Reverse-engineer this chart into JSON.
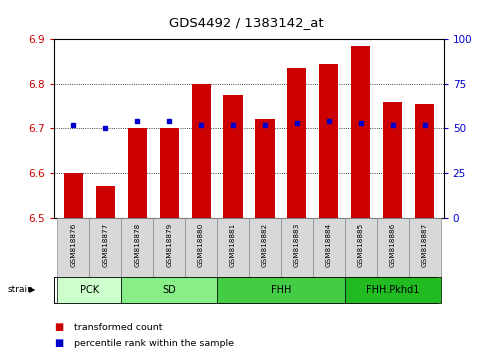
{
  "title": "GDS4492 / 1383142_at",
  "samples": [
    "GSM818876",
    "GSM818877",
    "GSM818878",
    "GSM818879",
    "GSM818880",
    "GSM818881",
    "GSM818882",
    "GSM818883",
    "GSM818884",
    "GSM818885",
    "GSM818886",
    "GSM818887"
  ],
  "transformed_count": [
    6.6,
    6.57,
    6.7,
    6.7,
    6.8,
    6.775,
    6.72,
    6.835,
    6.845,
    6.885,
    6.76,
    6.755
  ],
  "percentile_rank": [
    52,
    50,
    54,
    54,
    52,
    52,
    52,
    53,
    54,
    53,
    52,
    52
  ],
  "groups": [
    {
      "label": "PCK",
      "start": 0,
      "end": 1,
      "color": "#ccffcc"
    },
    {
      "label": "SD",
      "start": 2,
      "end": 4,
      "color": "#88ee88"
    },
    {
      "label": "FHH",
      "start": 5,
      "end": 8,
      "color": "#44dd44"
    },
    {
      "label": "FHH.Pkhd1",
      "start": 9,
      "end": 11,
      "color": "#22cc44"
    }
  ],
  "ylim_left": [
    6.5,
    6.9
  ],
  "ylim_right": [
    0,
    100
  ],
  "yticks_left": [
    6.5,
    6.6,
    6.7,
    6.8,
    6.9
  ],
  "yticks_right": [
    0,
    25,
    50,
    75,
    100
  ],
  "bar_color": "#cc0000",
  "dot_color": "#0000cc",
  "bar_width": 0.6,
  "left_color": "#cc0000",
  "right_color": "#0000cc",
  "background_color": "#ffffff",
  "tick_label_bg": "#d8d8d8",
  "group_colors": [
    "#ccffcc",
    "#88ee88",
    "#44dd44",
    "#22cc44"
  ],
  "n_samples": 12
}
